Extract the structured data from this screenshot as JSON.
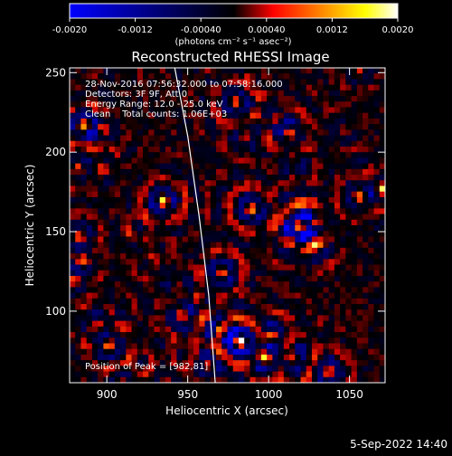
{
  "chart_data": {
    "type": "heatmap",
    "title": "Reconstructed RHESSI Image",
    "xlabel": "Heliocentric X (arcsec)",
    "ylabel": "Heliocentric Y (arcsec)",
    "xlim": [
      877,
      1072
    ],
    "ylim": [
      55,
      253
    ],
    "x_ticks": [
      900,
      950,
      1000,
      1050
    ],
    "y_ticks": [
      100,
      150,
      200,
      250
    ],
    "colorbar": {
      "range": [
        -0.002,
        0.002
      ],
      "tick_labels": [
        "-0.0020",
        "-0.0012",
        "-0.00040",
        "0.00040",
        "0.0012",
        "0.0020"
      ],
      "unit_label": "(photons cm⁻² s⁻¹ asec⁻²)",
      "colors": [
        "#0000ff",
        "#000000",
        "#ff0000",
        "#ffa500",
        "#ffff00",
        "#ffffff"
      ]
    },
    "annotations": [
      "28-Nov-2016 07:56:32.000 to 07:58:16.000",
      "Detectors: 3F 9F, Att 0",
      "Energy Range: 12.0 - 25.0 keV",
      "Clean    Total counts: 1.06E+03"
    ],
    "peak_label": "Position of Peak = [982,81]",
    "peak": [
      982,
      81
    ],
    "limb_curve": [
      [
        942,
        253
      ],
      [
        950,
        210
      ],
      [
        957,
        160
      ],
      [
        963,
        110
      ],
      [
        967,
        55
      ]
    ],
    "date_stamp": "5-Sep-2022 14:40",
    "grid": false,
    "legend": "none"
  }
}
